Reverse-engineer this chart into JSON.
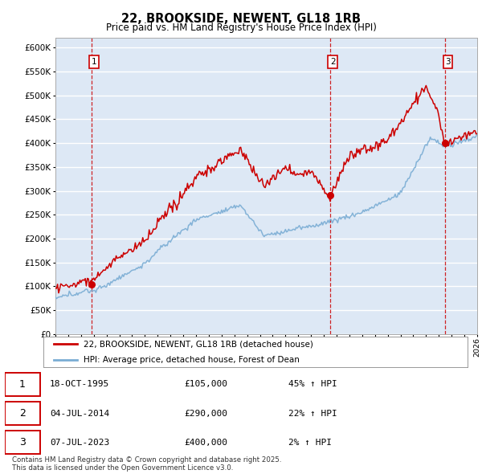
{
  "title": "22, BROOKSIDE, NEWENT, GL18 1RB",
  "subtitle": "Price paid vs. HM Land Registry's House Price Index (HPI)",
  "ylim": [
    0,
    620000
  ],
  "yticks": [
    0,
    50000,
    100000,
    150000,
    200000,
    250000,
    300000,
    350000,
    400000,
    450000,
    500000,
    550000,
    600000
  ],
  "hpi_color": "#7aadd4",
  "price_color": "#cc0000",
  "bg_color": "#dde8f5",
  "sale_year_nums": [
    1995.8,
    2014.5,
    2023.5
  ],
  "sale_prices": [
    105000,
    290000,
    400000
  ],
  "sale_labels": [
    "1",
    "2",
    "3"
  ],
  "table_rows": [
    [
      "1",
      "18-OCT-1995",
      "£105,000",
      "45% ↑ HPI"
    ],
    [
      "2",
      "04-JUL-2014",
      "£290,000",
      "22% ↑ HPI"
    ],
    [
      "3",
      "07-JUL-2023",
      "£400,000",
      "2% ↑ HPI"
    ]
  ],
  "legend_line1": "22, BROOKSIDE, NEWENT, GL18 1RB (detached house)",
  "legend_line2": "HPI: Average price, detached house, Forest of Dean",
  "footnote": "Contains HM Land Registry data © Crown copyright and database right 2025.\nThis data is licensed under the Open Government Licence v3.0.",
  "xstart": 1993,
  "xend": 2026
}
